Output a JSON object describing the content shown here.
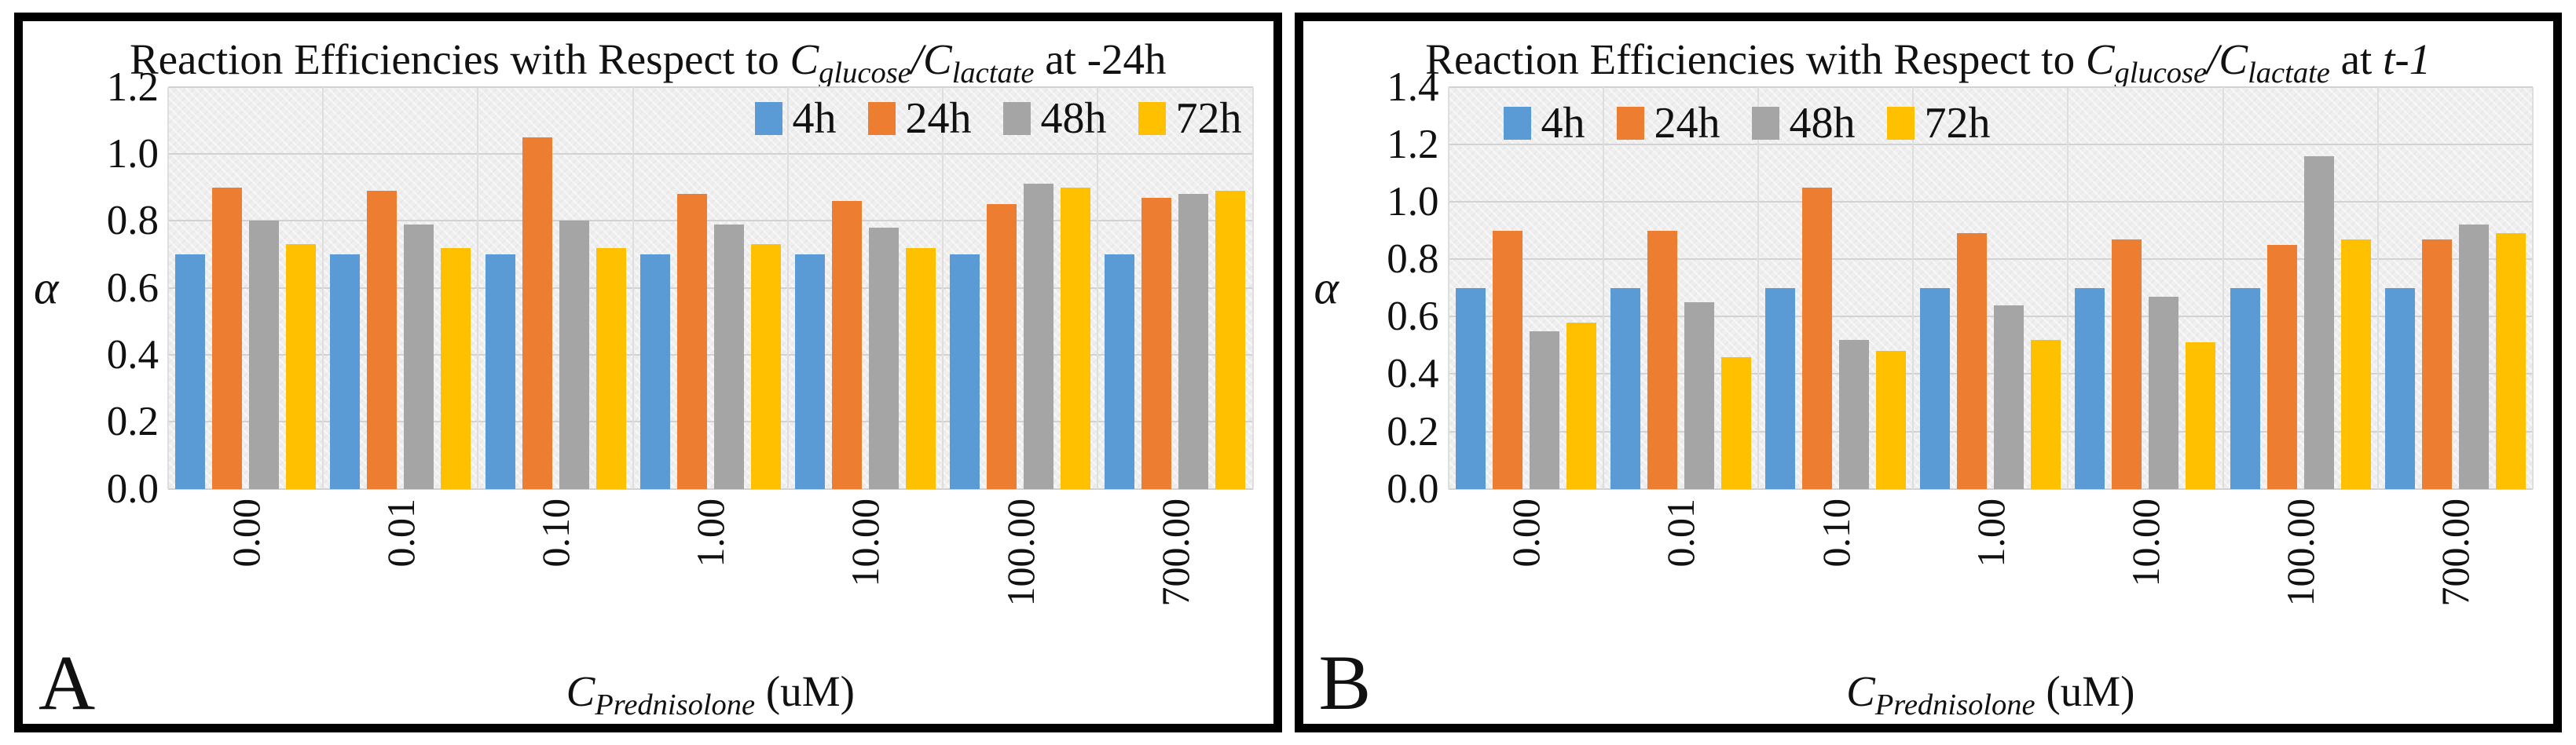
{
  "figure": {
    "panels": [
      {
        "label": "A",
        "title": {
          "pre": "Reaction Efficiencies with Respect to ",
          "c1": "C",
          "sub1": "glucose",
          "slash": "/",
          "c2": "C",
          "sub2": "lactate",
          "at": " at ",
          "time": "-24h"
        },
        "xtitle": {
          "c": "C",
          "sub": "Prednisolone",
          "unit": " (uM)"
        },
        "ylabel": "α"
      },
      {
        "label": "B",
        "title": {
          "pre": "Reaction Efficiencies with Respect to ",
          "c1": "C",
          "sub1": "glucose",
          "slash": "/",
          "c2": "C",
          "sub2": "lactate",
          "at": " at ",
          "time": "t-1"
        },
        "xtitle": {
          "c": "C",
          "sub": "Prednisolone",
          "unit": " (uM)"
        },
        "ylabel": "α"
      }
    ]
  },
  "chart_data": [
    {
      "type": "bar",
      "panel": "A",
      "title": "Reaction Efficiencies with Respect to C_glucose/C_lactate at -24h",
      "categories": [
        "0.00",
        "0.01",
        "0.10",
        "1.00",
        "10.00",
        "100.00",
        "700.00"
      ],
      "series": [
        {
          "name": "4h",
          "color": "#5B9BD5",
          "values": [
            0.7,
            0.7,
            0.7,
            0.7,
            0.7,
            0.7,
            0.7
          ]
        },
        {
          "name": "24h",
          "color": "#ED7D31",
          "values": [
            0.9,
            0.89,
            1.05,
            0.88,
            0.86,
            0.85,
            0.87
          ]
        },
        {
          "name": "48h",
          "color": "#A5A5A5",
          "values": [
            0.8,
            0.79,
            0.8,
            0.79,
            0.78,
            0.91,
            0.88
          ]
        },
        {
          "name": "72h",
          "color": "#FFC000",
          "values": [
            0.73,
            0.72,
            0.72,
            0.73,
            0.72,
            0.9,
            0.89
          ]
        }
      ],
      "xlabel": "C_Prednisolone (uM)",
      "ylabel": "α",
      "ylim": [
        0,
        1.2
      ],
      "ytick_step": 0.2,
      "yticks": [
        "1.2",
        "1.0",
        "0.8",
        "0.6",
        "0.4",
        "0.2",
        "0.0"
      ],
      "legend_position": "top-right",
      "grid": true
    },
    {
      "type": "bar",
      "panel": "B",
      "title": "Reaction Efficiencies with Respect to C_glucose/C_lactate at t-1",
      "categories": [
        "0.00",
        "0.01",
        "0.10",
        "1.00",
        "10.00",
        "100.00",
        "700.00"
      ],
      "series": [
        {
          "name": "4h",
          "color": "#5B9BD5",
          "values": [
            0.7,
            0.7,
            0.7,
            0.7,
            0.7,
            0.7,
            0.7
          ]
        },
        {
          "name": "24h",
          "color": "#ED7D31",
          "values": [
            0.9,
            0.9,
            1.05,
            0.89,
            0.87,
            0.85,
            0.87
          ]
        },
        {
          "name": "48h",
          "color": "#A5A5A5",
          "values": [
            0.55,
            0.65,
            0.52,
            0.64,
            0.67,
            1.16,
            0.92
          ]
        },
        {
          "name": "72h",
          "color": "#FFC000",
          "values": [
            0.58,
            0.46,
            0.48,
            0.52,
            0.51,
            0.87,
            0.89
          ]
        }
      ],
      "xlabel": "C_Prednisolone (uM)",
      "ylabel": "α",
      "ylim": [
        0,
        1.4
      ],
      "ytick_step": 0.2,
      "yticks": [
        "1.4",
        "1.2",
        "1.0",
        "0.8",
        "0.6",
        "0.4",
        "0.2",
        "0.0"
      ],
      "legend_position": "top-left",
      "grid": true
    }
  ]
}
